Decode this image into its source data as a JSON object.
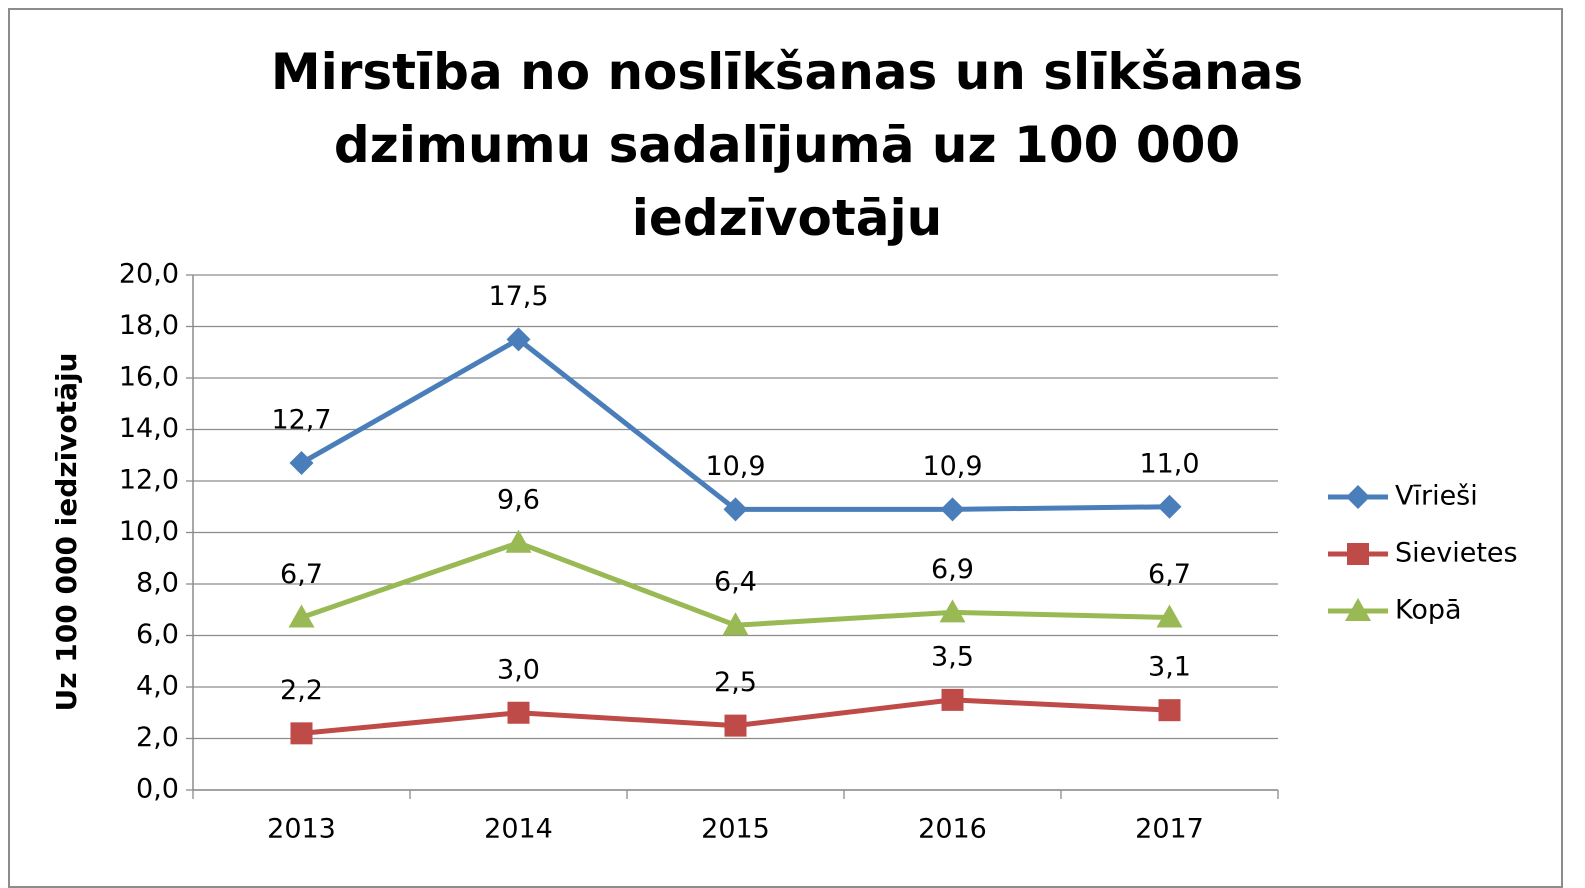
{
  "chart_data": {
    "type": "line",
    "title": "Mirstība no noslīkšanas un slīkšanas dzimumu sadalījumā uz 100 000 iedzīvotāju",
    "y_label": "Uz 100 000 iedzīvotāju",
    "categories": [
      "2013",
      "2014",
      "2015",
      "2016",
      "2017"
    ],
    "series": [
      {
        "name": "Vīrieši",
        "color": "#4a7ebb",
        "marker": "diamond",
        "values": [
          12.7,
          17.5,
          10.9,
          10.9,
          11.0
        ],
        "value_labels": [
          "12,7",
          "17,5",
          "10,9",
          "10,9",
          "11,0"
        ]
      },
      {
        "name": "Sievietes",
        "color": "#be4b48",
        "marker": "square",
        "values": [
          2.2,
          3.0,
          2.5,
          3.5,
          3.1
        ],
        "value_labels": [
          "2,2",
          "3,0",
          "2,5",
          "3,5",
          "3,1"
        ]
      },
      {
        "name": "Kopā",
        "color": "#98b954",
        "marker": "triangle",
        "values": [
          6.7,
          9.6,
          6.4,
          6.9,
          6.7
        ],
        "value_labels": [
          "6,7",
          "9,6",
          "6,4",
          "6,9",
          "6,7"
        ]
      }
    ],
    "ylim": [
      0,
      20
    ],
    "yticks": [
      {
        "value": 0,
        "label": "0,0"
      },
      {
        "value": 2,
        "label": "2,0"
      },
      {
        "value": 4,
        "label": "4,0"
      },
      {
        "value": 6,
        "label": "6,0"
      },
      {
        "value": 8,
        "label": "8,0"
      },
      {
        "value": 10,
        "label": "10,0"
      },
      {
        "value": 12,
        "label": "12,0"
      },
      {
        "value": 14,
        "label": "14,0"
      },
      {
        "value": 16,
        "label": "16,0"
      },
      {
        "value": 18,
        "label": "18,0"
      },
      {
        "value": 20,
        "label": "20,0"
      }
    ],
    "grid": true,
    "legend": "right"
  }
}
